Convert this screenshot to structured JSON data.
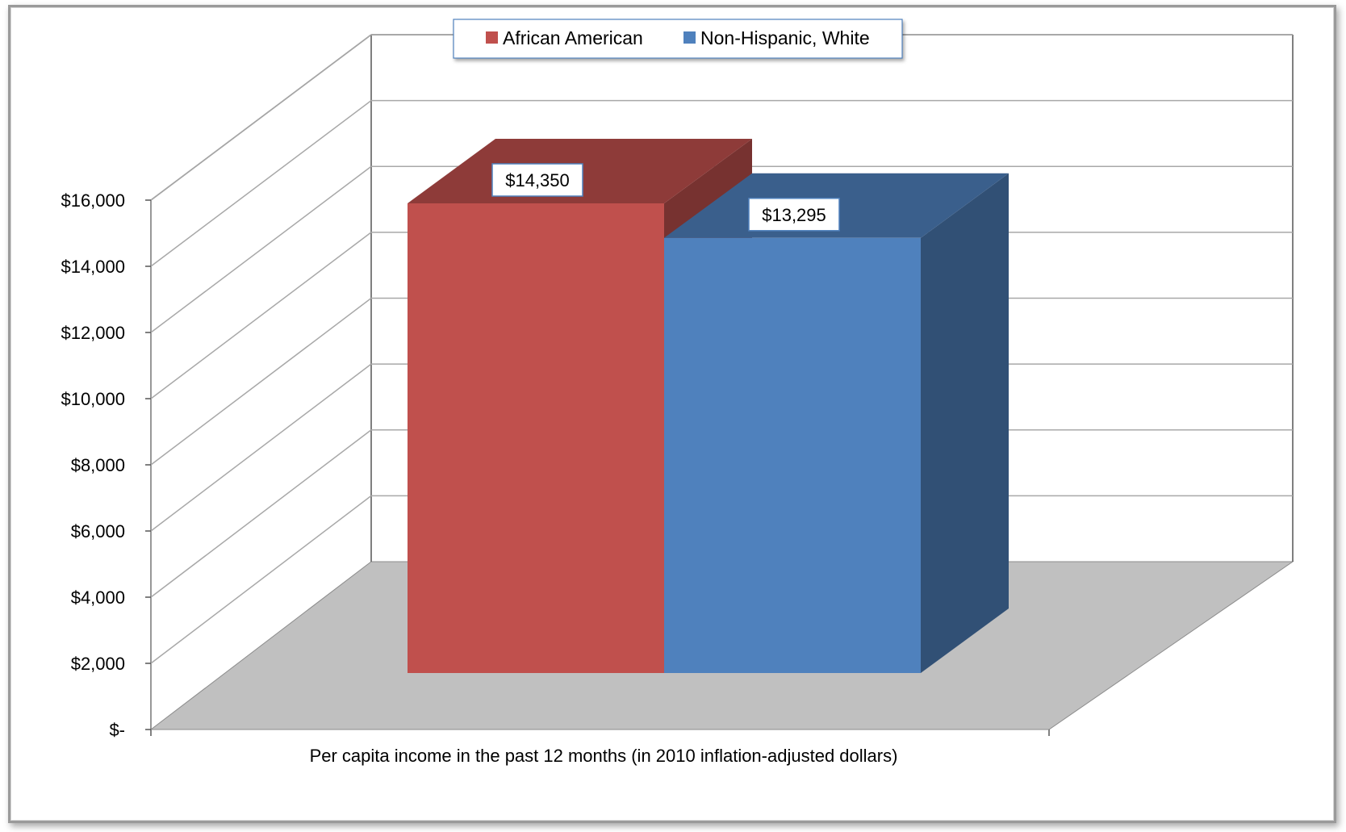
{
  "chart_data": {
    "type": "bar",
    "style": "3d-column",
    "categories": [
      "Per capita income in the past 12 months (in 2010 inflation-adjusted dollars)"
    ],
    "series": [
      {
        "name": "African American",
        "values": [
          14350
        ],
        "color": "#c0504d",
        "label": "$14,350"
      },
      {
        "name": "Non-Hispanic, White",
        "values": [
          13295
        ],
        "color": "#4f81bd",
        "label": "$13,295"
      }
    ],
    "xlabel": "Per capita income in the past 12 months (in 2010 inflation-adjusted dollars)",
    "ylabel": "",
    "ylim": [
      0,
      16000
    ],
    "yticks": [
      {
        "value": 0,
        "label": "$-"
      },
      {
        "value": 2000,
        "label": "$2,000"
      },
      {
        "value": 4000,
        "label": "$4,000"
      },
      {
        "value": 6000,
        "label": "$6,000"
      },
      {
        "value": 8000,
        "label": "$8,000"
      },
      {
        "value": 10000,
        "label": "$10,000"
      },
      {
        "value": 12000,
        "label": "$12,000"
      },
      {
        "value": 14000,
        "label": "$14,000"
      },
      {
        "value": 16000,
        "label": "$16,000"
      }
    ],
    "grid": true,
    "legend": "top-center",
    "floor_color": "#c0c0c0"
  }
}
